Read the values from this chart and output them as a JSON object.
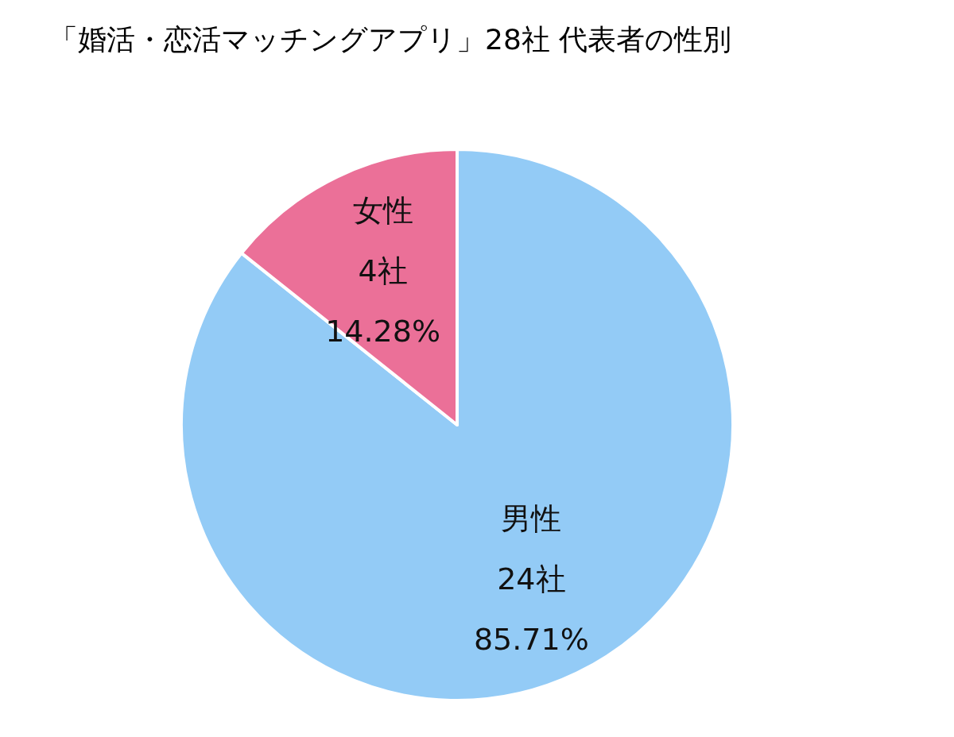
{
  "chart_data": {
    "type": "pie",
    "title": "「婚活・恋活マッチングアプリ」28社 代表者の性別",
    "categories": [
      "男性",
      "女性"
    ],
    "values": [
      24,
      4
    ],
    "colors": [
      "#93cbf6",
      "#eb7098"
    ],
    "value_labels": [
      "24社\n85.71%",
      "4社\n14.28%"
    ],
    "legend": false
  }
}
